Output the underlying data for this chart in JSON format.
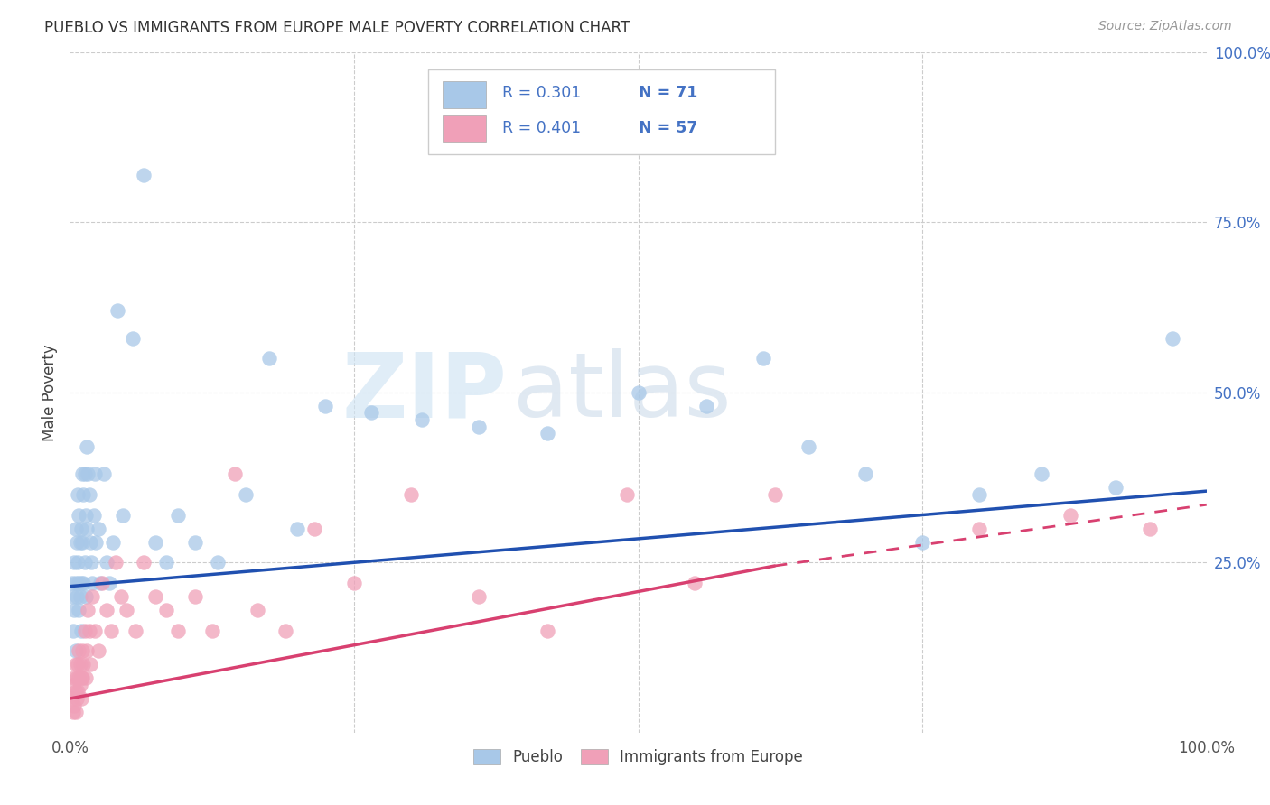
{
  "title": "PUEBLO VS IMMIGRANTS FROM EUROPE MALE POVERTY CORRELATION CHART",
  "source": "Source: ZipAtlas.com",
  "ylabel": "Male Poverty",
  "legend_label1": "Pueblo",
  "legend_label2": "Immigrants from Europe",
  "legend_r1": "R = 0.301",
  "legend_n1": "N = 71",
  "legend_r2": "R = 0.401",
  "legend_n2": "N = 57",
  "blue_color": "#A8C8E8",
  "pink_color": "#F0A0B8",
  "blue_line_color": "#2050B0",
  "pink_line_color": "#D84070",
  "watermark_zip": "ZIP",
  "watermark_atlas": "atlas",
  "pueblo_x": [
    0.002,
    0.003,
    0.003,
    0.004,
    0.004,
    0.005,
    0.005,
    0.005,
    0.006,
    0.006,
    0.007,
    0.007,
    0.008,
    0.008,
    0.008,
    0.009,
    0.009,
    0.01,
    0.01,
    0.01,
    0.011,
    0.011,
    0.012,
    0.012,
    0.013,
    0.013,
    0.014,
    0.014,
    0.015,
    0.015,
    0.016,
    0.017,
    0.018,
    0.019,
    0.02,
    0.021,
    0.022,
    0.023,
    0.025,
    0.027,
    0.03,
    0.032,
    0.035,
    0.038,
    0.042,
    0.047,
    0.055,
    0.065,
    0.075,
    0.085,
    0.095,
    0.11,
    0.13,
    0.155,
    0.175,
    0.2,
    0.225,
    0.265,
    0.31,
    0.36,
    0.42,
    0.5,
    0.56,
    0.61,
    0.65,
    0.7,
    0.75,
    0.8,
    0.855,
    0.92,
    0.97
  ],
  "pueblo_y": [
    0.22,
    0.2,
    0.15,
    0.18,
    0.25,
    0.3,
    0.22,
    0.12,
    0.28,
    0.2,
    0.35,
    0.25,
    0.22,
    0.32,
    0.18,
    0.28,
    0.2,
    0.22,
    0.3,
    0.15,
    0.38,
    0.28,
    0.35,
    0.22,
    0.38,
    0.25,
    0.32,
    0.2,
    0.42,
    0.3,
    0.38,
    0.35,
    0.28,
    0.25,
    0.22,
    0.32,
    0.38,
    0.28,
    0.3,
    0.22,
    0.38,
    0.25,
    0.22,
    0.28,
    0.62,
    0.32,
    0.58,
    0.82,
    0.28,
    0.25,
    0.32,
    0.28,
    0.25,
    0.35,
    0.55,
    0.3,
    0.48,
    0.47,
    0.46,
    0.45,
    0.44,
    0.5,
    0.48,
    0.55,
    0.42,
    0.38,
    0.28,
    0.35,
    0.38,
    0.36,
    0.58
  ],
  "europe_x": [
    0.002,
    0.003,
    0.003,
    0.004,
    0.004,
    0.005,
    0.005,
    0.005,
    0.006,
    0.006,
    0.007,
    0.007,
    0.008,
    0.008,
    0.009,
    0.009,
    0.01,
    0.01,
    0.011,
    0.011,
    0.012,
    0.013,
    0.014,
    0.015,
    0.016,
    0.017,
    0.018,
    0.02,
    0.022,
    0.025,
    0.028,
    0.032,
    0.036,
    0.04,
    0.045,
    0.05,
    0.058,
    0.065,
    0.075,
    0.085,
    0.095,
    0.11,
    0.125,
    0.145,
    0.165,
    0.19,
    0.215,
    0.25,
    0.3,
    0.36,
    0.42,
    0.49,
    0.55,
    0.62,
    0.8,
    0.88,
    0.95
  ],
  "europe_y": [
    0.05,
    0.03,
    0.07,
    0.04,
    0.08,
    0.06,
    0.1,
    0.03,
    0.08,
    0.05,
    0.1,
    0.06,
    0.08,
    0.12,
    0.07,
    0.1,
    0.08,
    0.05,
    0.12,
    0.08,
    0.1,
    0.15,
    0.08,
    0.12,
    0.18,
    0.15,
    0.1,
    0.2,
    0.15,
    0.12,
    0.22,
    0.18,
    0.15,
    0.25,
    0.2,
    0.18,
    0.15,
    0.25,
    0.2,
    0.18,
    0.15,
    0.2,
    0.15,
    0.38,
    0.18,
    0.15,
    0.3,
    0.22,
    0.35,
    0.2,
    0.15,
    0.35,
    0.22,
    0.35,
    0.3,
    0.32,
    0.3
  ],
  "pueblo_line": {
    "x": [
      0.0,
      1.0
    ],
    "y": [
      0.215,
      0.355
    ]
  },
  "europe_line_solid": {
    "x": [
      0.0,
      0.62
    ],
    "y": [
      0.05,
      0.245
    ]
  },
  "europe_line_dash": {
    "x": [
      0.62,
      1.0
    ],
    "y": [
      0.245,
      0.335
    ]
  },
  "xlim": [
    0.0,
    1.0
  ],
  "ylim": [
    0.0,
    1.0
  ],
  "yticks": [
    0.25,
    0.5,
    0.75,
    1.0
  ],
  "ytick_labels": [
    "25.0%",
    "50.0%",
    "75.0%",
    "100.0%"
  ],
  "xtick_labels_show": [
    "0.0%",
    "100.0%"
  ],
  "grid_color": "#CCCCCC",
  "bg_color": "#FFFFFF",
  "tick_color_blue": "#4472C4",
  "tick_color_dark": "#555555"
}
